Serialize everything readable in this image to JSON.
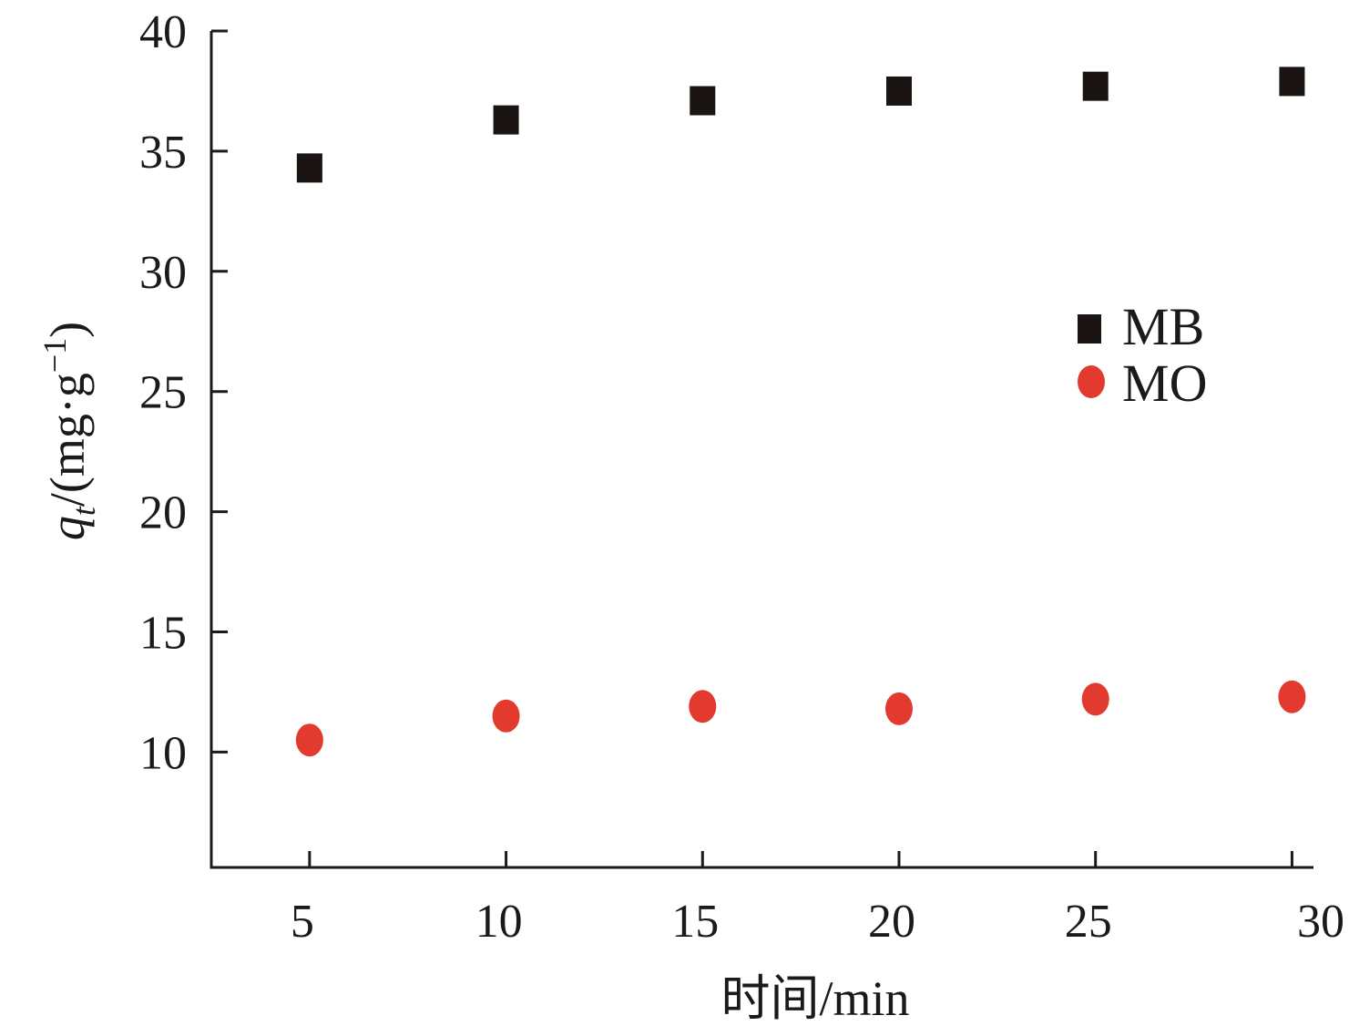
{
  "chart_data": {
    "type": "scatter",
    "title": "",
    "xlabel": "时间/min",
    "ylabel": {
      "symbol": "q",
      "subscript": "t",
      "unit_open": "/(mg·g",
      "superscript": "−1",
      "unit_close": ")"
    },
    "xlim": [
      2.5,
      30.5
    ],
    "ylim": [
      5.2,
      40
    ],
    "x_ticks": [
      5,
      10,
      15,
      20,
      25,
      30
    ],
    "y_ticks": [
      10,
      15,
      20,
      25,
      30,
      35,
      40
    ],
    "grid": false,
    "legend_position": "right",
    "series": [
      {
        "name": "MB",
        "marker": "square",
        "color": "#1a1412",
        "x": [
          5,
          10,
          15,
          20,
          25,
          30
        ],
        "y": [
          34.3,
          36.3,
          37.1,
          37.5,
          37.7,
          37.9
        ]
      },
      {
        "name": "MO",
        "marker": "circle",
        "color": "#e23a2f",
        "x": [
          5,
          10,
          15,
          20,
          25,
          30
        ],
        "y": [
          10.5,
          11.5,
          11.9,
          11.8,
          12.2,
          12.3
        ]
      }
    ]
  }
}
